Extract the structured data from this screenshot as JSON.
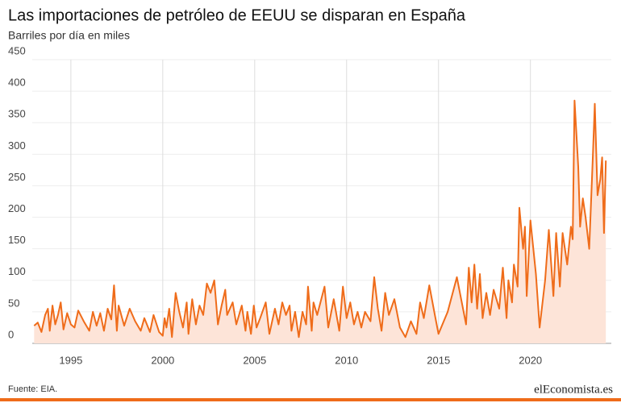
{
  "chart_data": {
    "type": "area",
    "title": "Las importaciones de petróleo de EEUU se disparan en España",
    "subtitle": "Barriles por día en miles",
    "source": "Fuente: EIA.",
    "logo": "elEconomista.es",
    "color": "#ef6c1a",
    "fill": "#fde4d8",
    "grid": true,
    "xlim": [
      1992.9,
      2024.4
    ],
    "xticks": [
      1995,
      2000,
      2005,
      2010,
      2015,
      2020
    ],
    "ylim": [
      0,
      450
    ],
    "yticks": [
      0,
      50,
      100,
      150,
      200,
      250,
      300,
      350,
      400,
      450
    ],
    "x": [
      1993.0,
      1993.2,
      1993.4,
      1993.6,
      1993.75,
      1993.85,
      1994.0,
      1994.15,
      1994.3,
      1994.45,
      1994.6,
      1994.8,
      1995.0,
      1995.2,
      1995.4,
      1995.7,
      1996.0,
      1996.2,
      1996.4,
      1996.6,
      1996.8,
      1997.0,
      1997.2,
      1997.35,
      1997.5,
      1997.6,
      1997.9,
      1998.2,
      1998.5,
      1998.8,
      1999.0,
      1999.3,
      1999.5,
      1999.8,
      2000.0,
      2000.1,
      2000.2,
      2000.35,
      2000.5,
      2000.7,
      2000.9,
      2001.1,
      2001.3,
      2001.4,
      2001.6,
      2001.8,
      2002.0,
      2002.2,
      2002.4,
      2002.6,
      2002.8,
      2003.0,
      2003.2,
      2003.4,
      2003.5,
      2003.8,
      2004.0,
      2004.3,
      2004.5,
      2004.6,
      2004.8,
      2004.95,
      2005.1,
      2005.3,
      2005.6,
      2005.8,
      2006.1,
      2006.3,
      2006.5,
      2006.7,
      2006.9,
      2007.0,
      2007.2,
      2007.4,
      2007.6,
      2007.8,
      2007.9,
      2008.1,
      2008.2,
      2008.4,
      2008.8,
      2009.0,
      2009.3,
      2009.6,
      2009.8,
      2010.0,
      2010.2,
      2010.4,
      2010.6,
      2010.8,
      2011.0,
      2011.3,
      2011.5,
      2011.7,
      2011.9,
      2012.1,
      2012.3,
      2012.6,
      2012.9,
      2013.2,
      2013.5,
      2013.8,
      2014.0,
      2014.2,
      2014.5,
      2014.8,
      2015.0,
      2015.5,
      2016.0,
      2016.5,
      2016.65,
      2016.8,
      2016.95,
      2017.1,
      2017.25,
      2017.4,
      2017.6,
      2017.8,
      2018.0,
      2018.3,
      2018.5,
      2018.7,
      2018.8,
      2019.0,
      2019.1,
      2019.3,
      2019.4,
      2019.6,
      2019.7,
      2019.8,
      2020.0,
      2020.3,
      2020.5,
      2020.8,
      2021.0,
      2021.25,
      2021.4,
      2021.6,
      2021.75,
      2022.0,
      2022.2,
      2022.3,
      2022.4,
      2022.6,
      2022.7,
      2022.85,
      2023.0,
      2023.2,
      2023.4,
      2023.5,
      2023.65,
      2023.8,
      2023.9,
      2024.0,
      2024.1
    ],
    "values": [
      28,
      33,
      18,
      45,
      55,
      20,
      60,
      30,
      45,
      65,
      22,
      48,
      30,
      25,
      52,
      35,
      20,
      50,
      28,
      48,
      20,
      55,
      38,
      92,
      20,
      60,
      28,
      55,
      35,
      20,
      40,
      18,
      45,
      18,
      12,
      40,
      25,
      55,
      10,
      80,
      50,
      25,
      65,
      15,
      70,
      30,
      60,
      45,
      95,
      80,
      100,
      30,
      60,
      85,
      45,
      65,
      30,
      60,
      20,
      50,
      15,
      60,
      25,
      40,
      65,
      15,
      55,
      30,
      65,
      45,
      60,
      20,
      50,
      10,
      50,
      30,
      90,
      20,
      65,
      45,
      90,
      25,
      70,
      20,
      90,
      40,
      65,
      30,
      50,
      25,
      50,
      35,
      105,
      55,
      20,
      80,
      45,
      70,
      25,
      10,
      35,
      15,
      65,
      40,
      92,
      45,
      15,
      50,
      105,
      30,
      120,
      65,
      125,
      55,
      110,
      40,
      80,
      45,
      85,
      55,
      120,
      40,
      100,
      65,
      125,
      90,
      215,
      150,
      185,
      75,
      195,
      110,
      25,
      100,
      180,
      75,
      175,
      90,
      175,
      125,
      185,
      165,
      385,
      280,
      185,
      230,
      200,
      150,
      300,
      380,
      235,
      260,
      295,
      175,
      290
    ]
  }
}
